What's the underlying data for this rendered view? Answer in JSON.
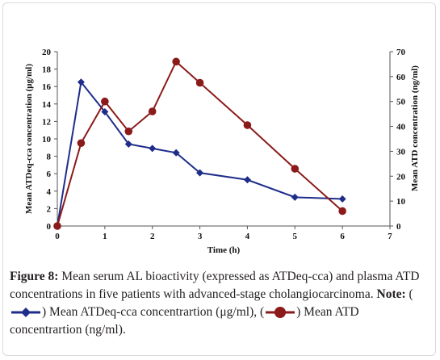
{
  "chart_data": {
    "type": "line",
    "x": [
      0,
      0.5,
      1,
      1.5,
      2,
      2.5,
      3,
      4,
      5,
      6
    ],
    "xlabel": "Time (h)",
    "xlim": [
      0,
      7
    ],
    "xticks": [
      "0",
      "1",
      "2",
      "3",
      "4",
      "5",
      "6",
      "7"
    ],
    "ylabel": "Mean ATDeq-cca concentration (μg/ml)",
    "ylim": [
      0,
      20
    ],
    "yticks": [
      "0",
      "2",
      "4",
      "6",
      "8",
      "10",
      "12",
      "14",
      "16",
      "18",
      "20"
    ],
    "y2label": "Mean ATD concentration (ng/ml)",
    "y2lim": [
      0,
      70
    ],
    "y2ticks": [
      "0",
      "10",
      "20",
      "30",
      "40",
      "50",
      "60",
      "70"
    ],
    "series": [
      {
        "name": "Mean ATDeq-cca concentrartion (μg/ml)",
        "axis": "left",
        "color": "#1f2d8a",
        "marker": "diamond",
        "values": [
          0,
          16.5,
          13.1,
          9.4,
          8.9,
          8.4,
          6.1,
          5.3,
          3.3,
          3.1
        ]
      },
      {
        "name": "Mean ATD concentrartion (ng/ml)",
        "axis": "right",
        "color": "#8b1a1a",
        "marker": "circle",
        "values": [
          0,
          33.3,
          50.0,
          38.0,
          46.0,
          66.0,
          57.5,
          40.5,
          23.0,
          6.0
        ]
      }
    ],
    "grid": false,
    "legend": "none"
  },
  "caption": {
    "figure_label": "Figure 8:",
    "text": " Mean serum AL bioactivity (expressed as ATDeq-cca) and plasma ATD concentrations in five patients with advanced-stage cholangiocarcinoma.",
    "note_label": "Note:",
    "paren_open": " (",
    "series1_text": ") Mean ATDeq-cca concentrartion (μg/ml), (",
    "series2_text": ") Mean ATD concentrartion (ng/ml)."
  }
}
